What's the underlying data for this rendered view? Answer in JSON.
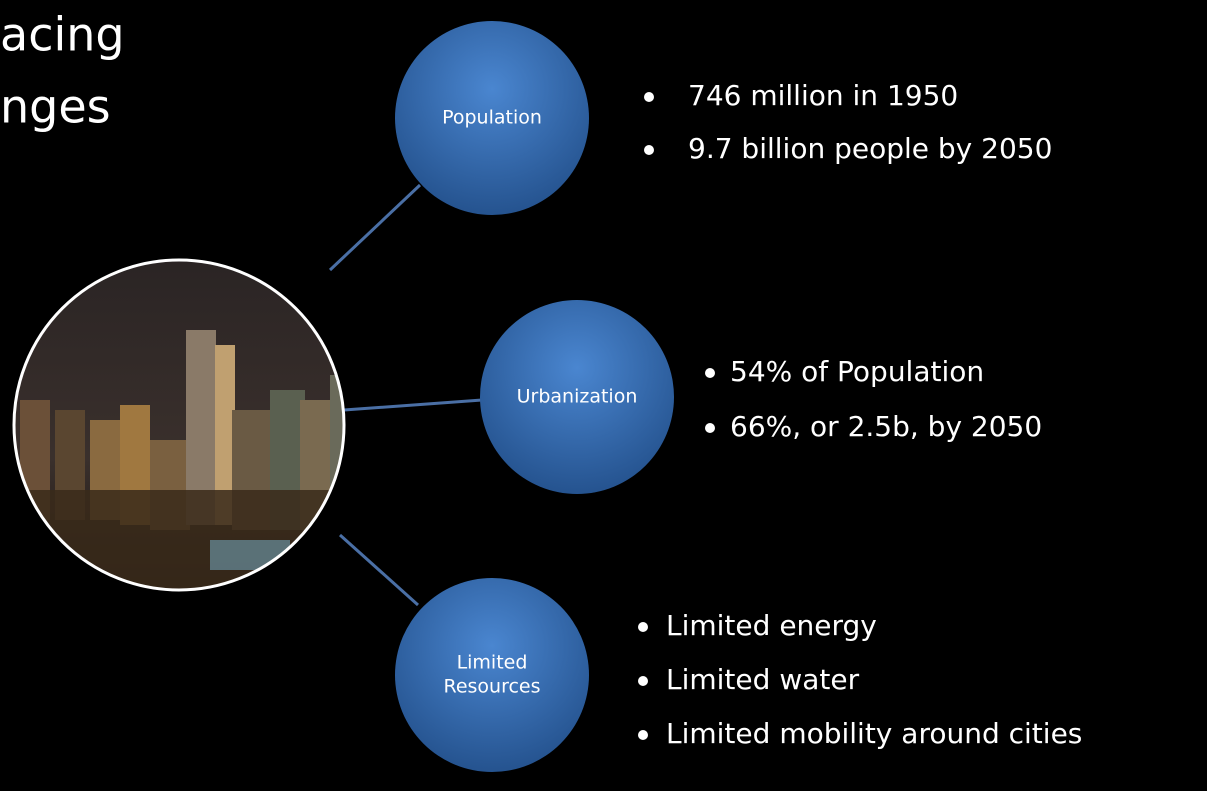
{
  "title": {
    "lines": [
      "acing",
      "nges"
    ]
  },
  "nodes": [
    {
      "label": [
        "Population"
      ],
      "bullets": [
        "746 million in 1950",
        "9.7 billion people by 2050"
      ]
    },
    {
      "label": [
        "Urbanization"
      ],
      "bullets": [
        "54% of Population",
        "66%, or 2.5b, by 2050"
      ]
    },
    {
      "label": [
        "Limited",
        "Resources"
      ],
      "bullets": [
        "Limited energy",
        "Limited water",
        "Limited mobility around cities"
      ]
    }
  ]
}
